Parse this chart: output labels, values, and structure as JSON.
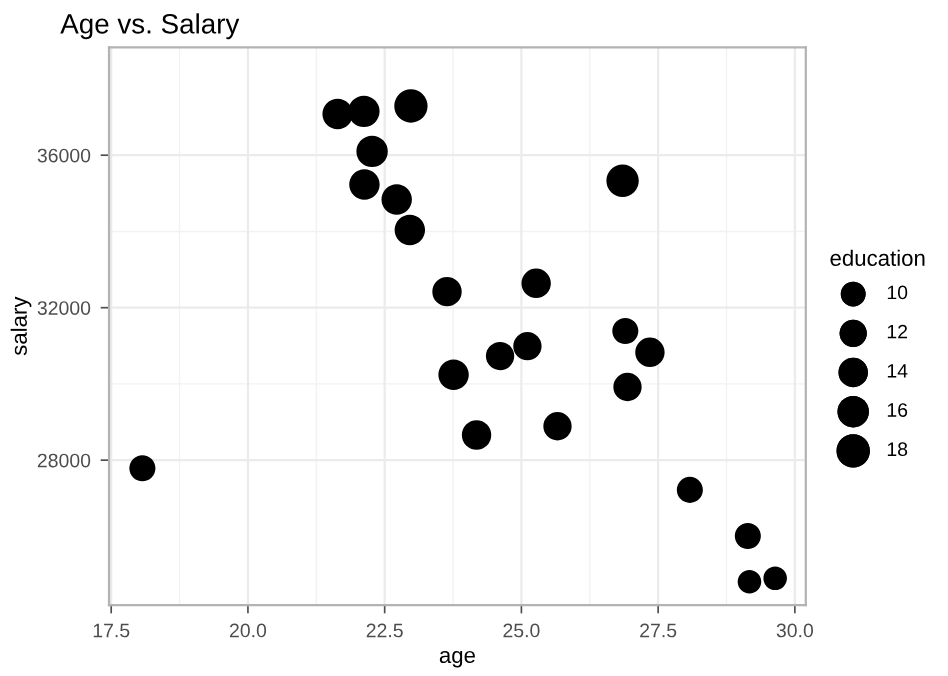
{
  "chart_data": {
    "type": "bubble",
    "title": "Age vs. Salary",
    "xlabel": "age",
    "ylabel": "salary",
    "legend_title": "education",
    "x": [
      21.64,
      22.12,
      22.98,
      22.27,
      22.13,
      22.72,
      22.96,
      23.64,
      26.85,
      25.27,
      26.9,
      25.11,
      27.35,
      24.61,
      23.76,
      24.18,
      18.07,
      25.66,
      26.94,
      28.08,
      29.14,
      29.17,
      29.64
    ],
    "values": [
      37080,
      37150,
      37290,
      36100,
      35230,
      34840,
      34040,
      32420,
      35330,
      32640,
      31390,
      30990,
      30830,
      30730,
      30240,
      28660,
      27790,
      28890,
      29920,
      27220,
      26010,
      24810,
      24900
    ],
    "sizes": [
      15,
      16,
      18,
      16,
      15,
      15,
      15,
      14,
      17,
      14,
      11,
      13,
      14,
      13,
      15,
      14,
      11,
      13,
      13,
      11,
      11,
      9,
      9
    ],
    "size_legend": [
      10,
      12,
      14,
      16,
      18
    ],
    "color": "#000000",
    "xlim": [
      17.46,
      30.2
    ],
    "ylim": [
      24200,
      38830
    ],
    "xticks": [
      {
        "value": 17.5,
        "label": "17.5"
      },
      {
        "value": 20,
        "label": "20.0"
      },
      {
        "value": 22.5,
        "label": "22.5"
      },
      {
        "value": 25,
        "label": "25.0"
      },
      {
        "value": 27.5,
        "label": "27.5"
      },
      {
        "value": 30,
        "label": "30.0"
      }
    ],
    "yticks": [
      28000,
      32000,
      36000
    ],
    "grid": true
  }
}
